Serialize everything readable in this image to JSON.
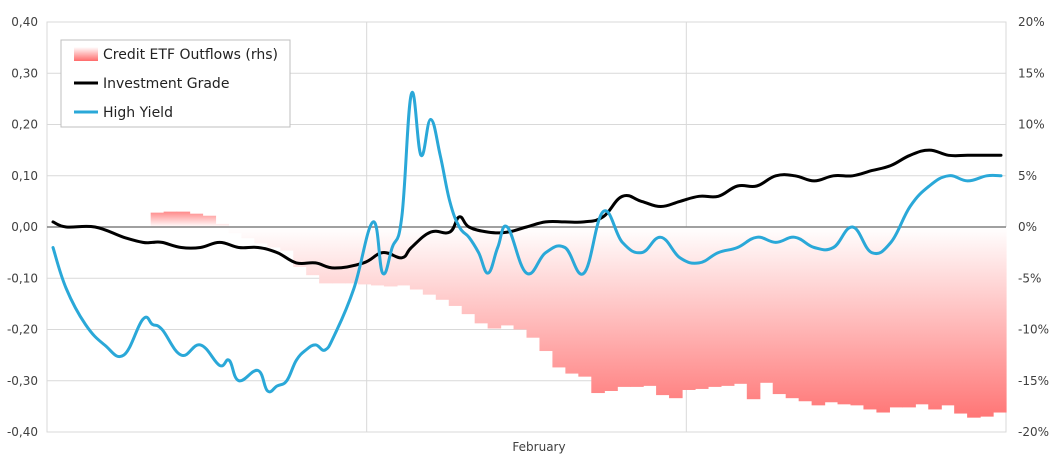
{
  "chart_data": {
    "type": "line",
    "xlabel": "February",
    "y_left": {
      "min": -0.4,
      "max": 0.4,
      "ticks": [
        "0,40",
        "0,30",
        "0,20",
        "0,10",
        "0,00",
        "-0,10",
        "-0,20",
        "-0,30",
        "-0,40"
      ]
    },
    "y_right": {
      "min": -20,
      "max": 20,
      "ticks": [
        "20%",
        "15%",
        "10%",
        "5%",
        "0%",
        "-5%",
        "-10%",
        "-15%",
        "-20%"
      ]
    },
    "grid": true,
    "legend_position": "top-left",
    "series": [
      {
        "name": "Credit ETF Outflows (rhs)",
        "type": "bar",
        "axis": "right",
        "color": "#ff6b6b",
        "values": [
          0,
          0,
          0,
          0,
          0,
          0,
          0,
          0,
          1.4,
          1.5,
          1.5,
          1.3,
          1.1,
          0.3,
          -0.6,
          -1.1,
          -1.6,
          -2,
          -2.3,
          -3.9,
          -4.7,
          -5.5,
          -5.5,
          -5.5,
          -5.6,
          -5.7,
          -5.8,
          -5.7,
          -6.1,
          -6.6,
          -7.1,
          -7.7,
          -8.5,
          -9.4,
          -9.9,
          -9.6,
          -10.0,
          -10.8,
          -12.1,
          -13.7,
          -14.3,
          -14.6,
          -16.2,
          -16.0,
          -15.6,
          -15.6,
          -15.5,
          -16.4,
          -16.7,
          -15.9,
          -15.8,
          -15.6,
          -15.5,
          -15.3,
          -16.8,
          -15.2,
          -16.3,
          -16.7,
          -17.0,
          -17.4,
          -17.1,
          -17.3,
          -17.4,
          -17.8,
          -18.1,
          -17.6,
          -17.6,
          -17.3,
          -17.8,
          -17.4,
          -18.2,
          -18.6,
          -18.5,
          -18.1
        ]
      },
      {
        "name": "Investment Grade",
        "type": "line",
        "axis": "left",
        "color": "#000000",
        "x": [
          0,
          2,
          5,
          8,
          10,
          11,
          12,
          14,
          16,
          18,
          20,
          22,
          24,
          26,
          28,
          30,
          33,
          35,
          37,
          38,
          40,
          42,
          43,
          44,
          46,
          48,
          50,
          52,
          54,
          56,
          58,
          60,
          62,
          64,
          66,
          68,
          70,
          72,
          74,
          76,
          78,
          80,
          82,
          84,
          86,
          88,
          90,
          92,
          94,
          96,
          98,
          100
        ],
        "values": [
          0.01,
          0,
          0,
          -0.02,
          -0.03,
          -0.03,
          -0.03,
          -0.04,
          -0.04,
          -0.03,
          -0.04,
          -0.04,
          -0.05,
          -0.07,
          -0.07,
          -0.08,
          -0.07,
          -0.05,
          -0.06,
          -0.04,
          -0.01,
          -0.01,
          0.02,
          0,
          -0.01,
          -0.01,
          0,
          0.01,
          0.01,
          0.01,
          0.02,
          0.06,
          0.05,
          0.04,
          0.05,
          0.06,
          0.06,
          0.08,
          0.08,
          0.1,
          0.1,
          0.09,
          0.1,
          0.1,
          0.11,
          0.12,
          0.14,
          0.15,
          0.14,
          0.14,
          0.14,
          0.14
        ]
      },
      {
        "name": "High Yield",
        "type": "line",
        "axis": "left",
        "color": "#2aa8d8",
        "x": [
          0,
          2,
          4,
          6,
          8,
          10,
          11,
          12,
          14,
          16,
          18,
          19,
          20,
          22,
          23,
          24,
          25,
          26,
          27,
          28,
          29,
          30,
          32,
          34,
          35,
          36,
          37,
          38,
          39,
          40,
          41,
          42,
          43,
          44,
          45,
          46,
          47,
          48,
          50,
          52,
          54,
          56,
          58,
          60,
          62,
          64,
          66,
          68,
          70,
          72,
          74,
          76,
          78,
          80,
          82,
          84,
          86,
          88,
          90,
          92,
          94,
          96,
          98,
          100
        ],
        "values": [
          -0.04,
          -0.12,
          -0.19,
          -0.23,
          -0.25,
          -0.18,
          -0.19,
          -0.2,
          -0.25,
          -0.23,
          -0.27,
          -0.26,
          -0.3,
          -0.28,
          -0.32,
          -0.31,
          -0.3,
          -0.26,
          -0.24,
          -0.23,
          -0.24,
          -0.21,
          -0.12,
          0.01,
          -0.09,
          -0.04,
          0.02,
          0.26,
          0.14,
          0.21,
          0.14,
          0.05,
          0,
          -0.02,
          -0.05,
          -0.09,
          -0.04,
          0,
          -0.09,
          -0.05,
          -0.04,
          -0.09,
          0.03,
          -0.03,
          -0.05,
          -0.02,
          -0.06,
          -0.07,
          -0.05,
          -0.04,
          -0.02,
          -0.03,
          -0.02,
          -0.04,
          -0.04,
          0,
          -0.05,
          -0.03,
          0.04,
          0.08,
          0.1,
          0.09,
          0.1,
          0.1
        ]
      }
    ]
  }
}
